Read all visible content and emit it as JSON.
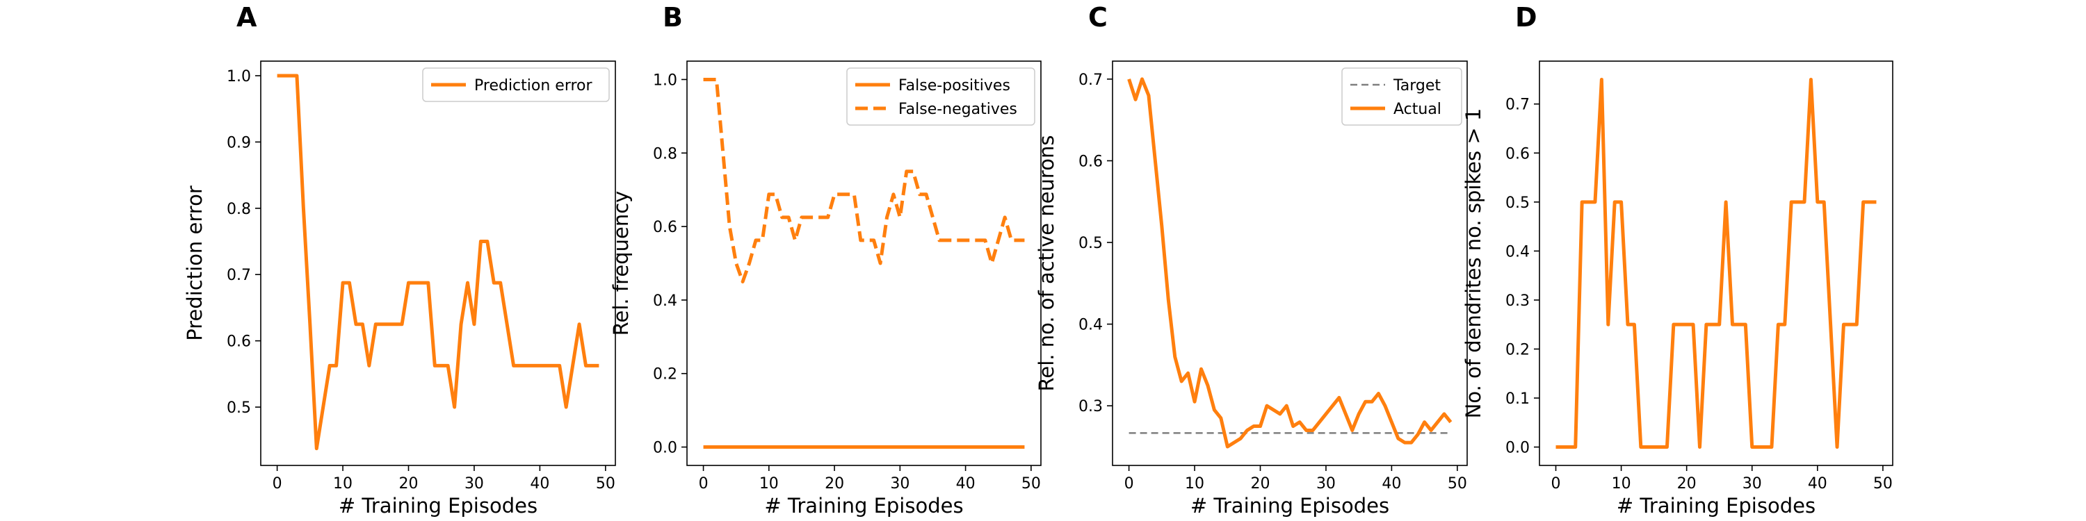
{
  "colors": {
    "series": "#ff7f0e",
    "target": "#7f7f7f",
    "axis": "#000000",
    "legend_border": "#cccccc"
  },
  "chart_data": [
    {
      "type": "line",
      "panel": "A",
      "xlabel": "# Training Episodes",
      "ylabel": "Prediction error",
      "xlim": [
        -2.5,
        51.5
      ],
      "ylim": [
        0.412,
        1.022
      ],
      "xticks": [
        0,
        10,
        20,
        30,
        40,
        50
      ],
      "yticks": [
        0.5,
        0.6,
        0.7,
        0.8,
        0.9,
        1.0
      ],
      "ytick_labels": [
        "0.5",
        "0.6",
        "0.7",
        "0.8",
        "0.9",
        "1.0"
      ],
      "legend": "top-right",
      "series": [
        {
          "name": "Prediction error",
          "style": "solid",
          "x": [
            0,
            1,
            2,
            3,
            4,
            5,
            6,
            7,
            8,
            9,
            10,
            11,
            12,
            13,
            14,
            15,
            16,
            17,
            18,
            19,
            20,
            21,
            22,
            23,
            24,
            25,
            26,
            27,
            28,
            29,
            30,
            31,
            32,
            33,
            34,
            35,
            36,
            37,
            38,
            39,
            40,
            41,
            42,
            43,
            44,
            45,
            46,
            47,
            48,
            49
          ],
          "y": [
            1.0,
            1.0,
            1.0,
            1.0,
            0.8,
            0.625,
            0.4375,
            0.5,
            0.5625,
            0.5625,
            0.6875,
            0.6875,
            0.625,
            0.625,
            0.5625,
            0.625,
            0.625,
            0.625,
            0.625,
            0.625,
            0.6875,
            0.6875,
            0.6875,
            0.6875,
            0.5625,
            0.5625,
            0.5625,
            0.5,
            0.625,
            0.6875,
            0.625,
            0.75,
            0.75,
            0.6875,
            0.6875,
            0.625,
            0.5625,
            0.5625,
            0.5625,
            0.5625,
            0.5625,
            0.5625,
            0.5625,
            0.5625,
            0.5,
            0.5625,
            0.625,
            0.5625,
            0.5625,
            0.5625
          ]
        }
      ]
    },
    {
      "type": "line",
      "panel": "B",
      "xlabel": "# Training Episodes",
      "ylabel": "Rel. frequency",
      "xlim": [
        -2.5,
        51.5
      ],
      "ylim": [
        -0.05,
        1.05
      ],
      "xticks": [
        0,
        10,
        20,
        30,
        40,
        50
      ],
      "yticks": [
        0.0,
        0.2,
        0.4,
        0.6,
        0.8,
        1.0
      ],
      "ytick_labels": [
        "0.0",
        "0.2",
        "0.4",
        "0.6",
        "0.8",
        "1.0"
      ],
      "legend": "top-right",
      "series": [
        {
          "name": "False-positives",
          "style": "solid",
          "x": [
            0,
            49
          ],
          "y": [
            0.0,
            0.0
          ]
        },
        {
          "name": "False-negatives",
          "style": "dashed",
          "x": [
            0,
            1,
            2,
            3,
            4,
            5,
            6,
            7,
            8,
            9,
            10,
            11,
            12,
            13,
            14,
            15,
            16,
            17,
            18,
            19,
            20,
            21,
            22,
            23,
            24,
            25,
            26,
            27,
            28,
            29,
            30,
            31,
            32,
            33,
            34,
            35,
            36,
            37,
            38,
            39,
            40,
            41,
            42,
            43,
            44,
            45,
            46,
            47,
            48,
            49
          ],
          "y": [
            1.0,
            1.0,
            1.0,
            0.8,
            0.6,
            0.5,
            0.45,
            0.5,
            0.5625,
            0.5625,
            0.6875,
            0.6875,
            0.625,
            0.625,
            0.5625,
            0.625,
            0.625,
            0.625,
            0.625,
            0.625,
            0.6875,
            0.6875,
            0.6875,
            0.6875,
            0.5625,
            0.5625,
            0.5625,
            0.5,
            0.625,
            0.6875,
            0.625,
            0.75,
            0.75,
            0.6875,
            0.6875,
            0.625,
            0.5625,
            0.5625,
            0.5625,
            0.5625,
            0.5625,
            0.5625,
            0.5625,
            0.5625,
            0.5,
            0.5625,
            0.625,
            0.5625,
            0.5625,
            0.5625
          ]
        }
      ]
    },
    {
      "type": "line",
      "panel": "C",
      "xlabel": "# Training Episodes",
      "ylabel": "Rel. no. of active neurons",
      "xlim": [
        -2.5,
        51.5
      ],
      "ylim": [
        0.227,
        0.722
      ],
      "xticks": [
        0,
        10,
        20,
        30,
        40,
        50
      ],
      "yticks": [
        0.3,
        0.4,
        0.5,
        0.6,
        0.7
      ],
      "ytick_labels": [
        "0.3",
        "0.4",
        "0.5",
        "0.6",
        "0.7"
      ],
      "legend": "top-right",
      "series": [
        {
          "name": "Target",
          "style": "dashed",
          "color": "target",
          "x": [
            0,
            49
          ],
          "y": [
            0.2667,
            0.2667
          ]
        },
        {
          "name": "Actual",
          "style": "solid",
          "x": [
            0,
            1,
            2,
            3,
            4,
            5,
            6,
            7,
            8,
            9,
            10,
            11,
            12,
            13,
            14,
            15,
            16,
            17,
            18,
            19,
            20,
            21,
            22,
            23,
            24,
            25,
            26,
            27,
            28,
            29,
            30,
            31,
            32,
            33,
            34,
            35,
            36,
            37,
            38,
            39,
            40,
            41,
            42,
            43,
            44,
            45,
            46,
            47,
            48,
            49
          ],
          "y": [
            0.7,
            0.675,
            0.7,
            0.68,
            0.6,
            0.52,
            0.43,
            0.36,
            0.33,
            0.34,
            0.305,
            0.345,
            0.325,
            0.295,
            0.285,
            0.25,
            0.255,
            0.26,
            0.27,
            0.275,
            0.275,
            0.3,
            0.295,
            0.29,
            0.3,
            0.275,
            0.28,
            0.27,
            0.27,
            0.28,
            0.29,
            0.3,
            0.31,
            0.29,
            0.27,
            0.29,
            0.305,
            0.305,
            0.315,
            0.3,
            0.28,
            0.26,
            0.255,
            0.255,
            0.265,
            0.28,
            0.27,
            0.28,
            0.29,
            0.28
          ]
        }
      ]
    },
    {
      "type": "line",
      "panel": "D",
      "xlabel": "# Training Episodes",
      "ylabel": "No. of dendrites no. spikes > 1",
      "xlim": [
        -2.5,
        51.5
      ],
      "ylim": [
        -0.0375,
        0.7875
      ],
      "xticks": [
        0,
        10,
        20,
        30,
        40,
        50
      ],
      "yticks": [
        0.0,
        0.1,
        0.2,
        0.3,
        0.4,
        0.5,
        0.6,
        0.7
      ],
      "ytick_labels": [
        "0.0",
        "0.1",
        "0.2",
        "0.3",
        "0.4",
        "0.5",
        "0.6",
        "0.7"
      ],
      "legend": "none",
      "series": [
        {
          "name": "",
          "style": "solid",
          "x": [
            0,
            1,
            2,
            3,
            4,
            5,
            6,
            7,
            8,
            9,
            10,
            11,
            12,
            13,
            14,
            15,
            16,
            17,
            18,
            19,
            20,
            21,
            22,
            23,
            24,
            25,
            26,
            27,
            28,
            29,
            30,
            31,
            32,
            33,
            34,
            35,
            36,
            37,
            38,
            39,
            40,
            41,
            42,
            43,
            44,
            45,
            46,
            47,
            48,
            49
          ],
          "y": [
            0.0,
            0.0,
            0.0,
            0.0,
            0.5,
            0.5,
            0.5,
            0.75,
            0.25,
            0.5,
            0.5,
            0.25,
            0.25,
            0.0,
            0.0,
            0.0,
            0.0,
            0.0,
            0.25,
            0.25,
            0.25,
            0.25,
            0.0,
            0.25,
            0.25,
            0.25,
            0.5,
            0.25,
            0.25,
            0.25,
            0.0,
            0.0,
            0.0,
            0.0,
            0.25,
            0.25,
            0.5,
            0.5,
            0.5,
            0.75,
            0.5,
            0.5,
            0.25,
            0.0,
            0.25,
            0.25,
            0.25,
            0.5,
            0.5,
            0.5
          ]
        }
      ]
    }
  ]
}
